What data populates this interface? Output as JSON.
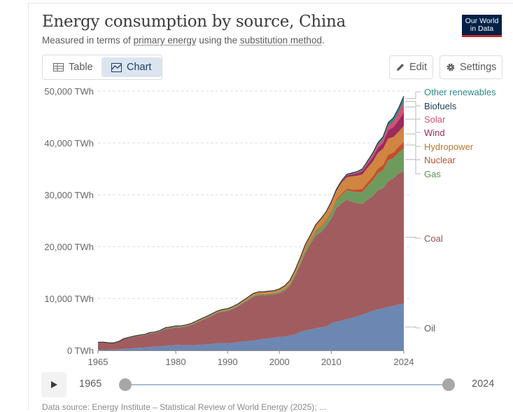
{
  "header": {
    "title": "Energy consumption by source, China",
    "subtitle_prefix": "Measured in terms of ",
    "subtitle_link1": "primary energy",
    "subtitle_mid": " using the ",
    "subtitle_link2": "substitution method",
    "subtitle_end": ".",
    "logo_line1": "Our World",
    "logo_line2": "in Data"
  },
  "toolbar": {
    "table_label": "Table",
    "chart_label": "Chart",
    "edit_label": "Edit",
    "settings_label": "Settings"
  },
  "timeline": {
    "start_year": "1965",
    "end_year": "2024"
  },
  "footer": {
    "text": "Data source: Energy Institute – Statistical Review of World Energy (2025); ..."
  },
  "chart_data": {
    "type": "area",
    "stacked": true,
    "title": "Energy consumption by source, China",
    "unit": "TWh",
    "x": [
      1965,
      1966,
      1967,
      1968,
      1969,
      1970,
      1971,
      1972,
      1973,
      1974,
      1975,
      1976,
      1977,
      1978,
      1979,
      1980,
      1981,
      1982,
      1983,
      1984,
      1985,
      1986,
      1987,
      1988,
      1989,
      1990,
      1991,
      1992,
      1993,
      1994,
      1995,
      1996,
      1997,
      1998,
      1999,
      2000,
      2001,
      2002,
      2003,
      2004,
      2005,
      2006,
      2007,
      2008,
      2009,
      2010,
      2011,
      2012,
      2013,
      2014,
      2015,
      2016,
      2017,
      2018,
      2019,
      2020,
      2021,
      2022,
      2023,
      2024
    ],
    "y_ticks": [
      0,
      10000,
      20000,
      30000,
      40000,
      50000
    ],
    "y_tick_labels": [
      "0 TWh",
      "10,000 TWh",
      "20,000 TWh",
      "30,000 TWh",
      "40,000 TWh",
      "50,000 TWh"
    ],
    "x_ticks": [
      1965,
      1980,
      1990,
      2000,
      2010,
      2024
    ],
    "x_tick_labels": [
      "1965",
      "1980",
      "1990",
      "2000",
      "2010",
      "2024"
    ],
    "ylim": [
      0,
      50000
    ],
    "series": [
      {
        "name": "Oil",
        "color": "#6d87b3",
        "label_color": "#5b5b5b",
        "values": [
          110,
          130,
          130,
          150,
          200,
          290,
          350,
          420,
          500,
          560,
          640,
          730,
          780,
          860,
          950,
          1000,
          970,
          970,
          1000,
          1030,
          1090,
          1160,
          1230,
          1330,
          1420,
          1380,
          1460,
          1570,
          1700,
          1780,
          1880,
          2050,
          2230,
          2290,
          2430,
          2610,
          2650,
          2850,
          3080,
          3570,
          3800,
          4020,
          4250,
          4420,
          4580,
          5240,
          5500,
          5720,
          6030,
          6250,
          6580,
          6880,
          7250,
          7620,
          7930,
          8090,
          8430,
          8500,
          8830,
          9010
        ]
      },
      {
        "name": "Coal",
        "color": "#a15c5f",
        "label_color": "#9a4f4f",
        "values": [
          1400,
          1400,
          1270,
          1200,
          1450,
          1890,
          2060,
          2200,
          2300,
          2350,
          2600,
          2600,
          2830,
          3250,
          3280,
          3400,
          3450,
          3640,
          3870,
          4290,
          4700,
          5030,
          5450,
          5860,
          6070,
          6180,
          6520,
          6910,
          7420,
          7920,
          8470,
          8580,
          8370,
          8410,
          8360,
          8420,
          8820,
          9580,
          11190,
          12880,
          15030,
          16480,
          17890,
          18380,
          19390,
          20130,
          22000,
          22600,
          23060,
          22380,
          21810,
          21360,
          21850,
          22120,
          22970,
          23180,
          24210,
          24710,
          25260,
          25600
        ]
      },
      {
        "name": "Gas",
        "color": "#6f9a5e",
        "label_color": "#5f8f4e",
        "values": [
          15,
          18,
          18,
          20,
          23,
          34,
          43,
          55,
          65,
          80,
          100,
          115,
          130,
          150,
          160,
          160,
          150,
          140,
          140,
          145,
          150,
          160,
          165,
          165,
          170,
          180,
          180,
          185,
          190,
          200,
          205,
          210,
          230,
          230,
          240,
          280,
          310,
          330,
          370,
          440,
          500,
          620,
          760,
          880,
          960,
          1160,
          1390,
          1570,
          1790,
          2020,
          2120,
          2280,
          2630,
          3000,
          3240,
          3500,
          4040,
          3860,
          4080,
          4380
        ]
      },
      {
        "name": "Nuclear",
        "color": "#c1502b",
        "label_color": "#c1502b",
        "values": [
          0,
          0,
          0,
          0,
          0,
          0,
          0,
          0,
          0,
          0,
          0,
          0,
          0,
          0,
          0,
          0,
          0,
          0,
          0,
          0,
          0,
          0,
          0,
          0,
          0,
          0,
          0,
          0,
          10,
          40,
          40,
          40,
          40,
          40,
          50,
          50,
          60,
          80,
          130,
          150,
          150,
          160,
          190,
          200,
          210,
          230,
          260,
          290,
          330,
          390,
          500,
          620,
          700,
          800,
          950,
          990,
          1080,
          1090,
          1160,
          1200
        ]
      },
      {
        "name": "Hydropower",
        "color": "#d08640",
        "label_color": "#b9762e",
        "values": [
          40,
          50,
          50,
          50,
          50,
          60,
          70,
          80,
          80,
          90,
          100,
          90,
          100,
          110,
          120,
          140,
          150,
          160,
          180,
          190,
          200,
          210,
          220,
          230,
          240,
          280,
          280,
          290,
          330,
          370,
          420,
          410,
          430,
          460,
          450,
          490,
          610,
          630,
          650,
          780,
          900,
          940,
          1050,
          1410,
          1420,
          1680,
          1610,
          2110,
          2160,
          2520,
          2660,
          2790,
          2750,
          2820,
          3000,
          3130,
          3100,
          2970,
          2830,
          3100
        ]
      },
      {
        "name": "Wind",
        "color": "#9c2a5b",
        "label_color": "#9c2a5b",
        "values": [
          0,
          0,
          0,
          0,
          0,
          0,
          0,
          0,
          0,
          0,
          0,
          0,
          0,
          0,
          0,
          0,
          0,
          0,
          0,
          0,
          0,
          0,
          0,
          0,
          0,
          0,
          0,
          0,
          0,
          0,
          0,
          0,
          0,
          0,
          0,
          0,
          0,
          0,
          0,
          0,
          10,
          10,
          20,
          30,
          70,
          120,
          180,
          250,
          350,
          400,
          460,
          600,
          730,
          890,
          980,
          1150,
          1620,
          1940,
          2240,
          2610
        ]
      },
      {
        "name": "Solar",
        "color": "#d64f73",
        "label_color": "#d64f73",
        "values": [
          0,
          0,
          0,
          0,
          0,
          0,
          0,
          0,
          0,
          0,
          0,
          0,
          0,
          0,
          0,
          0,
          0,
          0,
          0,
          0,
          0,
          0,
          0,
          0,
          0,
          0,
          0,
          0,
          0,
          0,
          0,
          0,
          0,
          0,
          0,
          0,
          0,
          0,
          0,
          0,
          0,
          0,
          0,
          0,
          0,
          0,
          10,
          20,
          40,
          70,
          110,
          190,
          300,
          430,
          540,
          650,
          810,
          1060,
          1460,
          2050
        ]
      },
      {
        "name": "Biofuels",
        "color": "#1d3f5e",
        "label_color": "#1d3f5e",
        "values": [
          0,
          0,
          0,
          0,
          0,
          0,
          0,
          0,
          0,
          0,
          0,
          0,
          0,
          0,
          0,
          0,
          0,
          0,
          0,
          0,
          0,
          0,
          0,
          0,
          0,
          0,
          0,
          0,
          0,
          0,
          0,
          0,
          0,
          0,
          0,
          0,
          0,
          0,
          5,
          10,
          10,
          15,
          20,
          20,
          20,
          25,
          25,
          30,
          35,
          35,
          40,
          40,
          50,
          50,
          60,
          60,
          70,
          70,
          80,
          90
        ]
      },
      {
        "name": "Other renewables",
        "color": "#2a8a86",
        "label_color": "#2a8a86",
        "values": [
          0,
          0,
          0,
          0,
          0,
          0,
          0,
          0,
          0,
          0,
          0,
          0,
          0,
          0,
          0,
          0,
          0,
          0,
          0,
          0,
          0,
          0,
          0,
          0,
          0,
          0,
          0,
          0,
          0,
          0,
          0,
          0,
          0,
          0,
          0,
          0,
          0,
          0,
          0,
          0,
          20,
          30,
          40,
          50,
          60,
          80,
          110,
          130,
          150,
          160,
          200,
          230,
          270,
          330,
          390,
          450,
          560,
          680,
          820,
          1000
        ]
      }
    ]
  }
}
